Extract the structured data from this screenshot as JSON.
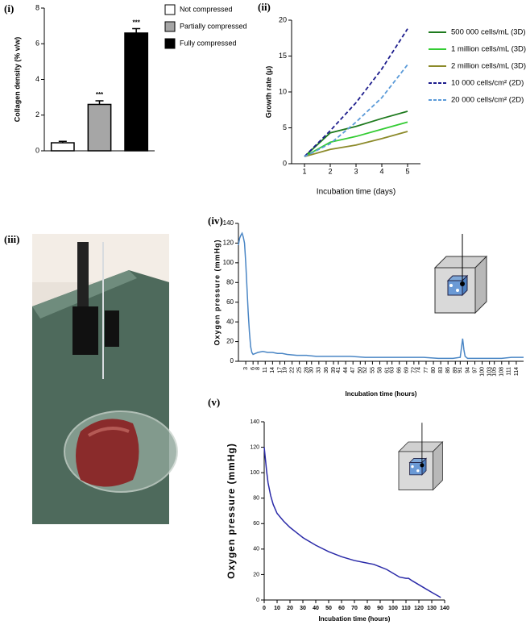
{
  "chart_data": [
    {
      "type": "bar",
      "label": "(i)",
      "y_label": "Collagen density (% v/w)",
      "categories": [
        "Not compressed",
        "Partially compressed",
        "Fully compressed"
      ],
      "values": [
        0.45,
        2.6,
        6.6
      ],
      "errors": [
        0.08,
        0.2,
        0.25
      ],
      "colors": [
        "#ffffff",
        "#a6a6a6",
        "#000000"
      ],
      "annotations": [
        {
          "x": "Partially compressed",
          "text": "***"
        },
        {
          "x": "Fully compressed",
          "text": "***"
        }
      ],
      "ylim": [
        0,
        8
      ],
      "yticks": [
        0,
        2,
        4,
        6,
        8
      ],
      "legend": "right"
    },
    {
      "type": "line",
      "label": "(ii)",
      "y_label": "Growth rate (μ)",
      "x_label": "Incubation time (days)",
      "x": [
        1,
        2,
        3,
        4,
        5
      ],
      "xlim": [
        0.5,
        5.5
      ],
      "xticks": [
        1,
        2,
        3,
        4,
        5
      ],
      "ylim": [
        0,
        20
      ],
      "yticks": [
        0,
        5,
        10,
        15,
        20
      ],
      "legend": "right",
      "series": [
        {
          "name": "500 000 cells/mL (3D)",
          "color": "#1e7a1e",
          "dash": false,
          "values": [
            1,
            4.3,
            5.2,
            6.3,
            7.3
          ]
        },
        {
          "name": "1 million cells/mL (3D)",
          "color": "#33cc33",
          "dash": false,
          "values": [
            1,
            3.0,
            3.8,
            4.8,
            5.8
          ]
        },
        {
          "name": "2 million cells/mL (3D)",
          "color": "#8c8a2a",
          "dash": false,
          "values": [
            1,
            2.0,
            2.6,
            3.5,
            4.5
          ]
        },
        {
          "name": "10 000 cells/cm² (2D)",
          "color": "#1c1c8c",
          "dash": true,
          "values": [
            1,
            4.6,
            8.5,
            13.2,
            18.8
          ]
        },
        {
          "name": "20 000 cells/cm² (2D)",
          "color": "#5a9ad8",
          "dash": true,
          "values": [
            1,
            2.8,
            5.8,
            9.2,
            13.8
          ]
        }
      ]
    },
    {
      "type": "line",
      "label": "(iv)",
      "y_label": "Oxygen pressure (mmHg)",
      "x_label": "Incubation time (hours)",
      "x": [
        0,
        0.5,
        1,
        1.5,
        2,
        2.5,
        3,
        3.5,
        4,
        4.5,
        5,
        5.5,
        6,
        7,
        8,
        10,
        12,
        14,
        16,
        18,
        20,
        24,
        28,
        32,
        36,
        40,
        46,
        52,
        58,
        64,
        70,
        76,
        82,
        88,
        91,
        92,
        92.5,
        93,
        94,
        96,
        100,
        104,
        108,
        112,
        117
      ],
      "xlim": [
        0,
        117
      ],
      "xticks": [
        3,
        6,
        8,
        11,
        14,
        17,
        19,
        22,
        25,
        28,
        30,
        33,
        36,
        39,
        41,
        44,
        47,
        50,
        52,
        55,
        58,
        61,
        63,
        66,
        69,
        72,
        74,
        77,
        80,
        83,
        86,
        89,
        91,
        94,
        97,
        100,
        103,
        105,
        108,
        111,
        114
      ],
      "ylim": [
        0,
        140
      ],
      "yticks": [
        0,
        20,
        40,
        60,
        80,
        100,
        120,
        140
      ],
      "series": [
        {
          "color": "#4a86c5",
          "dash": false,
          "values": [
            118,
            125,
            128,
            130,
            126,
            120,
            100,
            75,
            50,
            30,
            15,
            9,
            7,
            8,
            9,
            10,
            9,
            9,
            8,
            8,
            7,
            6,
            6,
            5,
            5,
            5,
            5,
            4,
            4,
            4,
            4,
            4,
            3,
            3,
            4,
            23,
            12,
            5,
            3,
            3,
            3,
            3,
            3,
            4,
            4
          ]
        }
      ]
    },
    {
      "type": "line",
      "label": "(v)",
      "y_label": "Oxygen pressure (mmHg)",
      "x_label": "Incubation time (hours)",
      "x": [
        0,
        1,
        2,
        3,
        5,
        7,
        10,
        15,
        20,
        25,
        30,
        40,
        50,
        60,
        70,
        80,
        85,
        90,
        95,
        100,
        105,
        110,
        112,
        115,
        120,
        125,
        130,
        137
      ],
      "xlim": [
        0,
        140
      ],
      "xticks": [
        0,
        10,
        20,
        30,
        40,
        50,
        60,
        70,
        80,
        90,
        100,
        110,
        120,
        130,
        140
      ],
      "ylim": [
        0,
        140
      ],
      "yticks": [
        0,
        20,
        40,
        60,
        80,
        100,
        120,
        140
      ],
      "series": [
        {
          "color": "#2a2aa8",
          "dash": false,
          "values": [
            120,
            110,
            100,
            92,
            82,
            75,
            68,
            62,
            57,
            53,
            49,
            43,
            38,
            34,
            31,
            29,
            28,
            26,
            24,
            21,
            18,
            17,
            17,
            15,
            12,
            9,
            6,
            2
          ]
        }
      ]
    }
  ],
  "photo": {
    "label": "(iii)"
  }
}
